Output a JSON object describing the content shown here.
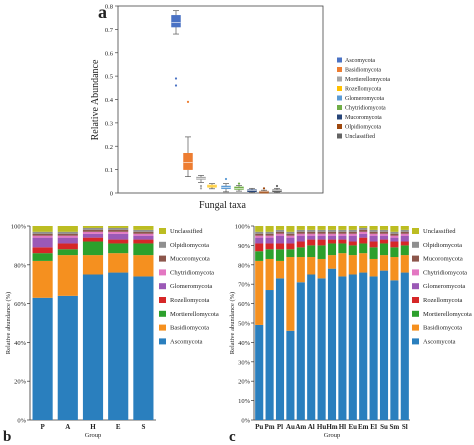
{
  "palette": {
    "Ascomycota": "#2a7fbe",
    "Basidiomycota": "#f5901f",
    "Mortierellomycota": "#2ca02c",
    "Rozellomycota": "#d62728",
    "Glomeromycota": "#9b59b6",
    "Chytridiomycota": "#e377c2",
    "Mucoromycota": "#8c564b",
    "Olpidiomycota": "#8f8f8f",
    "Unclassified": "#bcbd22"
  },
  "chart_data": [
    {
      "panel": "a",
      "type": "box",
      "xlabel": "Fungal taxa",
      "ylabel": "Relative Abundance",
      "ylim": [
        0,
        0.8
      ],
      "yticks": [
        "0",
        "0.1",
        "0.2",
        "0.3",
        "0.4",
        "0.5",
        "0.6",
        "0.7",
        "0.8"
      ],
      "legend_position": "right",
      "legend": [
        "Ascomycota",
        "Basidiomycota",
        "Mortierellomycota",
        "Rozellomycota",
        "Glomeromycota",
        "Chytridiomycota",
        "Mucoromycota",
        "Olpidiomycota",
        "Unclassified"
      ],
      "colors": [
        "#4a72c4",
        "#ed7d31",
        "#a5a5a5",
        "#ffc000",
        "#5b9bd5",
        "#70ad47",
        "#264478",
        "#9e480e",
        "#636363"
      ],
      "boxes": [
        {
          "name": "Ascomycota",
          "min": 0.68,
          "q1": 0.71,
          "median": 0.73,
          "q3": 0.76,
          "max": 0.78,
          "outliers": [
            0.49,
            0.46
          ]
        },
        {
          "name": "Basidiomycota",
          "min": 0.07,
          "q1": 0.1,
          "median": 0.13,
          "q3": 0.17,
          "max": 0.24,
          "outliers": [
            0.39
          ]
        },
        {
          "name": "Mortierellomycota",
          "min": 0.045,
          "q1": 0.058,
          "median": 0.062,
          "q3": 0.068,
          "max": 0.075,
          "outliers": [
            0.03,
            0.02
          ]
        },
        {
          "name": "Rozellomycota",
          "min": 0.018,
          "q1": 0.025,
          "median": 0.03,
          "q3": 0.034,
          "max": 0.04,
          "outliers": []
        },
        {
          "name": "Glomeromycota",
          "min": 0.005,
          "q1": 0.018,
          "median": 0.024,
          "q3": 0.03,
          "max": 0.04,
          "outliers": [
            0.06
          ]
        },
        {
          "name": "Chytridiomycota",
          "min": 0.008,
          "q1": 0.015,
          "median": 0.02,
          "q3": 0.026,
          "max": 0.032,
          "outliers": [
            0.04
          ]
        },
        {
          "name": "Mucoromycota",
          "min": 0.002,
          "q1": 0.006,
          "median": 0.01,
          "q3": 0.014,
          "max": 0.02,
          "outliers": []
        },
        {
          "name": "Olpidiomycota",
          "min": 0.001,
          "q1": 0.003,
          "median": 0.005,
          "q3": 0.008,
          "max": 0.012,
          "outliers": [
            0.02
          ]
        },
        {
          "name": "Unclassified",
          "min": 0.002,
          "q1": 0.008,
          "median": 0.011,
          "q3": 0.014,
          "max": 0.02,
          "outliers": [
            0.03
          ]
        }
      ]
    },
    {
      "panel": "b",
      "type": "stacked-bar",
      "xlabel": "Group",
      "ylabel": "Relative abundance (%)",
      "ylim": [
        0,
        100
      ],
      "yticks": [
        "0%",
        "20%",
        "40%",
        "60%",
        "80%",
        "100%"
      ],
      "legend_position": "right",
      "legend": [
        "Unclassified",
        "Olpidiomycota",
        "Mucoromycota",
        "Chytridiomycota",
        "Glomeromycota",
        "Rozellomycota",
        "Mortierellomycota",
        "Basidiomycota",
        "Ascomycota"
      ],
      "categories": [
        "P",
        "A",
        "H",
        "E",
        "S"
      ],
      "series": [
        {
          "name": "Ascomycota",
          "values": [
            63,
            64,
            75,
            76,
            74
          ]
        },
        {
          "name": "Basidiomycota",
          "values": [
            19,
            21,
            10,
            10,
            11
          ]
        },
        {
          "name": "Mortierellomycota",
          "values": [
            4,
            3,
            7,
            5,
            6
          ]
        },
        {
          "name": "Rozellomycota",
          "values": [
            3,
            3,
            2,
            2,
            2
          ]
        },
        {
          "name": "Glomeromycota",
          "values": [
            5,
            3,
            2,
            3,
            2
          ]
        },
        {
          "name": "Chytridiomycota",
          "values": [
            1,
            1,
            1,
            1,
            1
          ]
        },
        {
          "name": "Mucoromycota",
          "values": [
            1,
            1,
            1,
            1,
            1
          ]
        },
        {
          "name": "Olpidiomycota",
          "values": [
            1,
            1,
            1,
            1,
            1
          ]
        },
        {
          "name": "Unclassified",
          "values": [
            3,
            3,
            1,
            1,
            2
          ]
        }
      ]
    },
    {
      "panel": "c",
      "type": "stacked-bar",
      "xlabel": "Group",
      "ylabel": "Relative abundance (%)",
      "ylim": [
        0,
        100
      ],
      "yticks": [
        "0%",
        "10%",
        "20%",
        "30%",
        "40%",
        "50%",
        "60%",
        "70%",
        "80%",
        "90%",
        "100%"
      ],
      "legend_position": "right",
      "legend": [
        "Unclassified",
        "Olpidiomycota",
        "Mucoromycota",
        "Chytridiomycota",
        "Glomeromycota",
        "Rozellomycota",
        "Mortierellomycota",
        "Basidiomycota",
        "Ascomycota"
      ],
      "categories": [
        "Pu",
        "Pm",
        "Pl",
        "Au",
        "Am",
        "Al",
        "Hu",
        "Hm",
        "Hl",
        "Eu",
        "Em",
        "El",
        "Su",
        "Sm",
        "Sl"
      ],
      "series": [
        {
          "name": "Ascomycota",
          "values": [
            49,
            67,
            73,
            46,
            71,
            75,
            73,
            78,
            74,
            75,
            76,
            74,
            77,
            72,
            76
          ]
        },
        {
          "name": "Basidiomycota",
          "values": [
            33,
            16,
            9,
            38,
            13,
            9,
            10,
            7,
            12,
            10,
            10,
            9,
            8,
            12,
            9
          ]
        },
        {
          "name": "Mortierellomycota",
          "values": [
            5,
            5,
            6,
            4,
            5,
            6,
            7,
            6,
            5,
            5,
            5,
            6,
            6,
            5,
            5
          ]
        },
        {
          "name": "Rozellomycota",
          "values": [
            4,
            3,
            3,
            3,
            3,
            3,
            3,
            2,
            2,
            2,
            3,
            3,
            2,
            3,
            2
          ]
        },
        {
          "name": "Glomeromycota",
          "values": [
            3,
            3,
            4,
            3,
            3,
            2,
            2,
            2,
            2,
            3,
            2,
            3,
            2,
            2,
            3
          ]
        },
        {
          "name": "Chytridiomycota",
          "values": [
            1,
            1,
            1,
            1,
            1,
            1,
            1,
            1,
            1,
            1,
            1,
            1,
            1,
            1,
            1
          ]
        },
        {
          "name": "Mucoromycota",
          "values": [
            1,
            1,
            1,
            1,
            1,
            1,
            1,
            1,
            1,
            1,
            1,
            1,
            1,
            1,
            1
          ]
        },
        {
          "name": "Olpidiomycota",
          "values": [
            1,
            1,
            1,
            1,
            1,
            1,
            1,
            1,
            1,
            1,
            1,
            1,
            1,
            1,
            1
          ]
        },
        {
          "name": "Unclassified",
          "values": [
            3,
            3,
            2,
            3,
            2,
            2,
            2,
            2,
            2,
            2,
            1,
            2,
            2,
            3,
            2
          ]
        }
      ]
    }
  ]
}
